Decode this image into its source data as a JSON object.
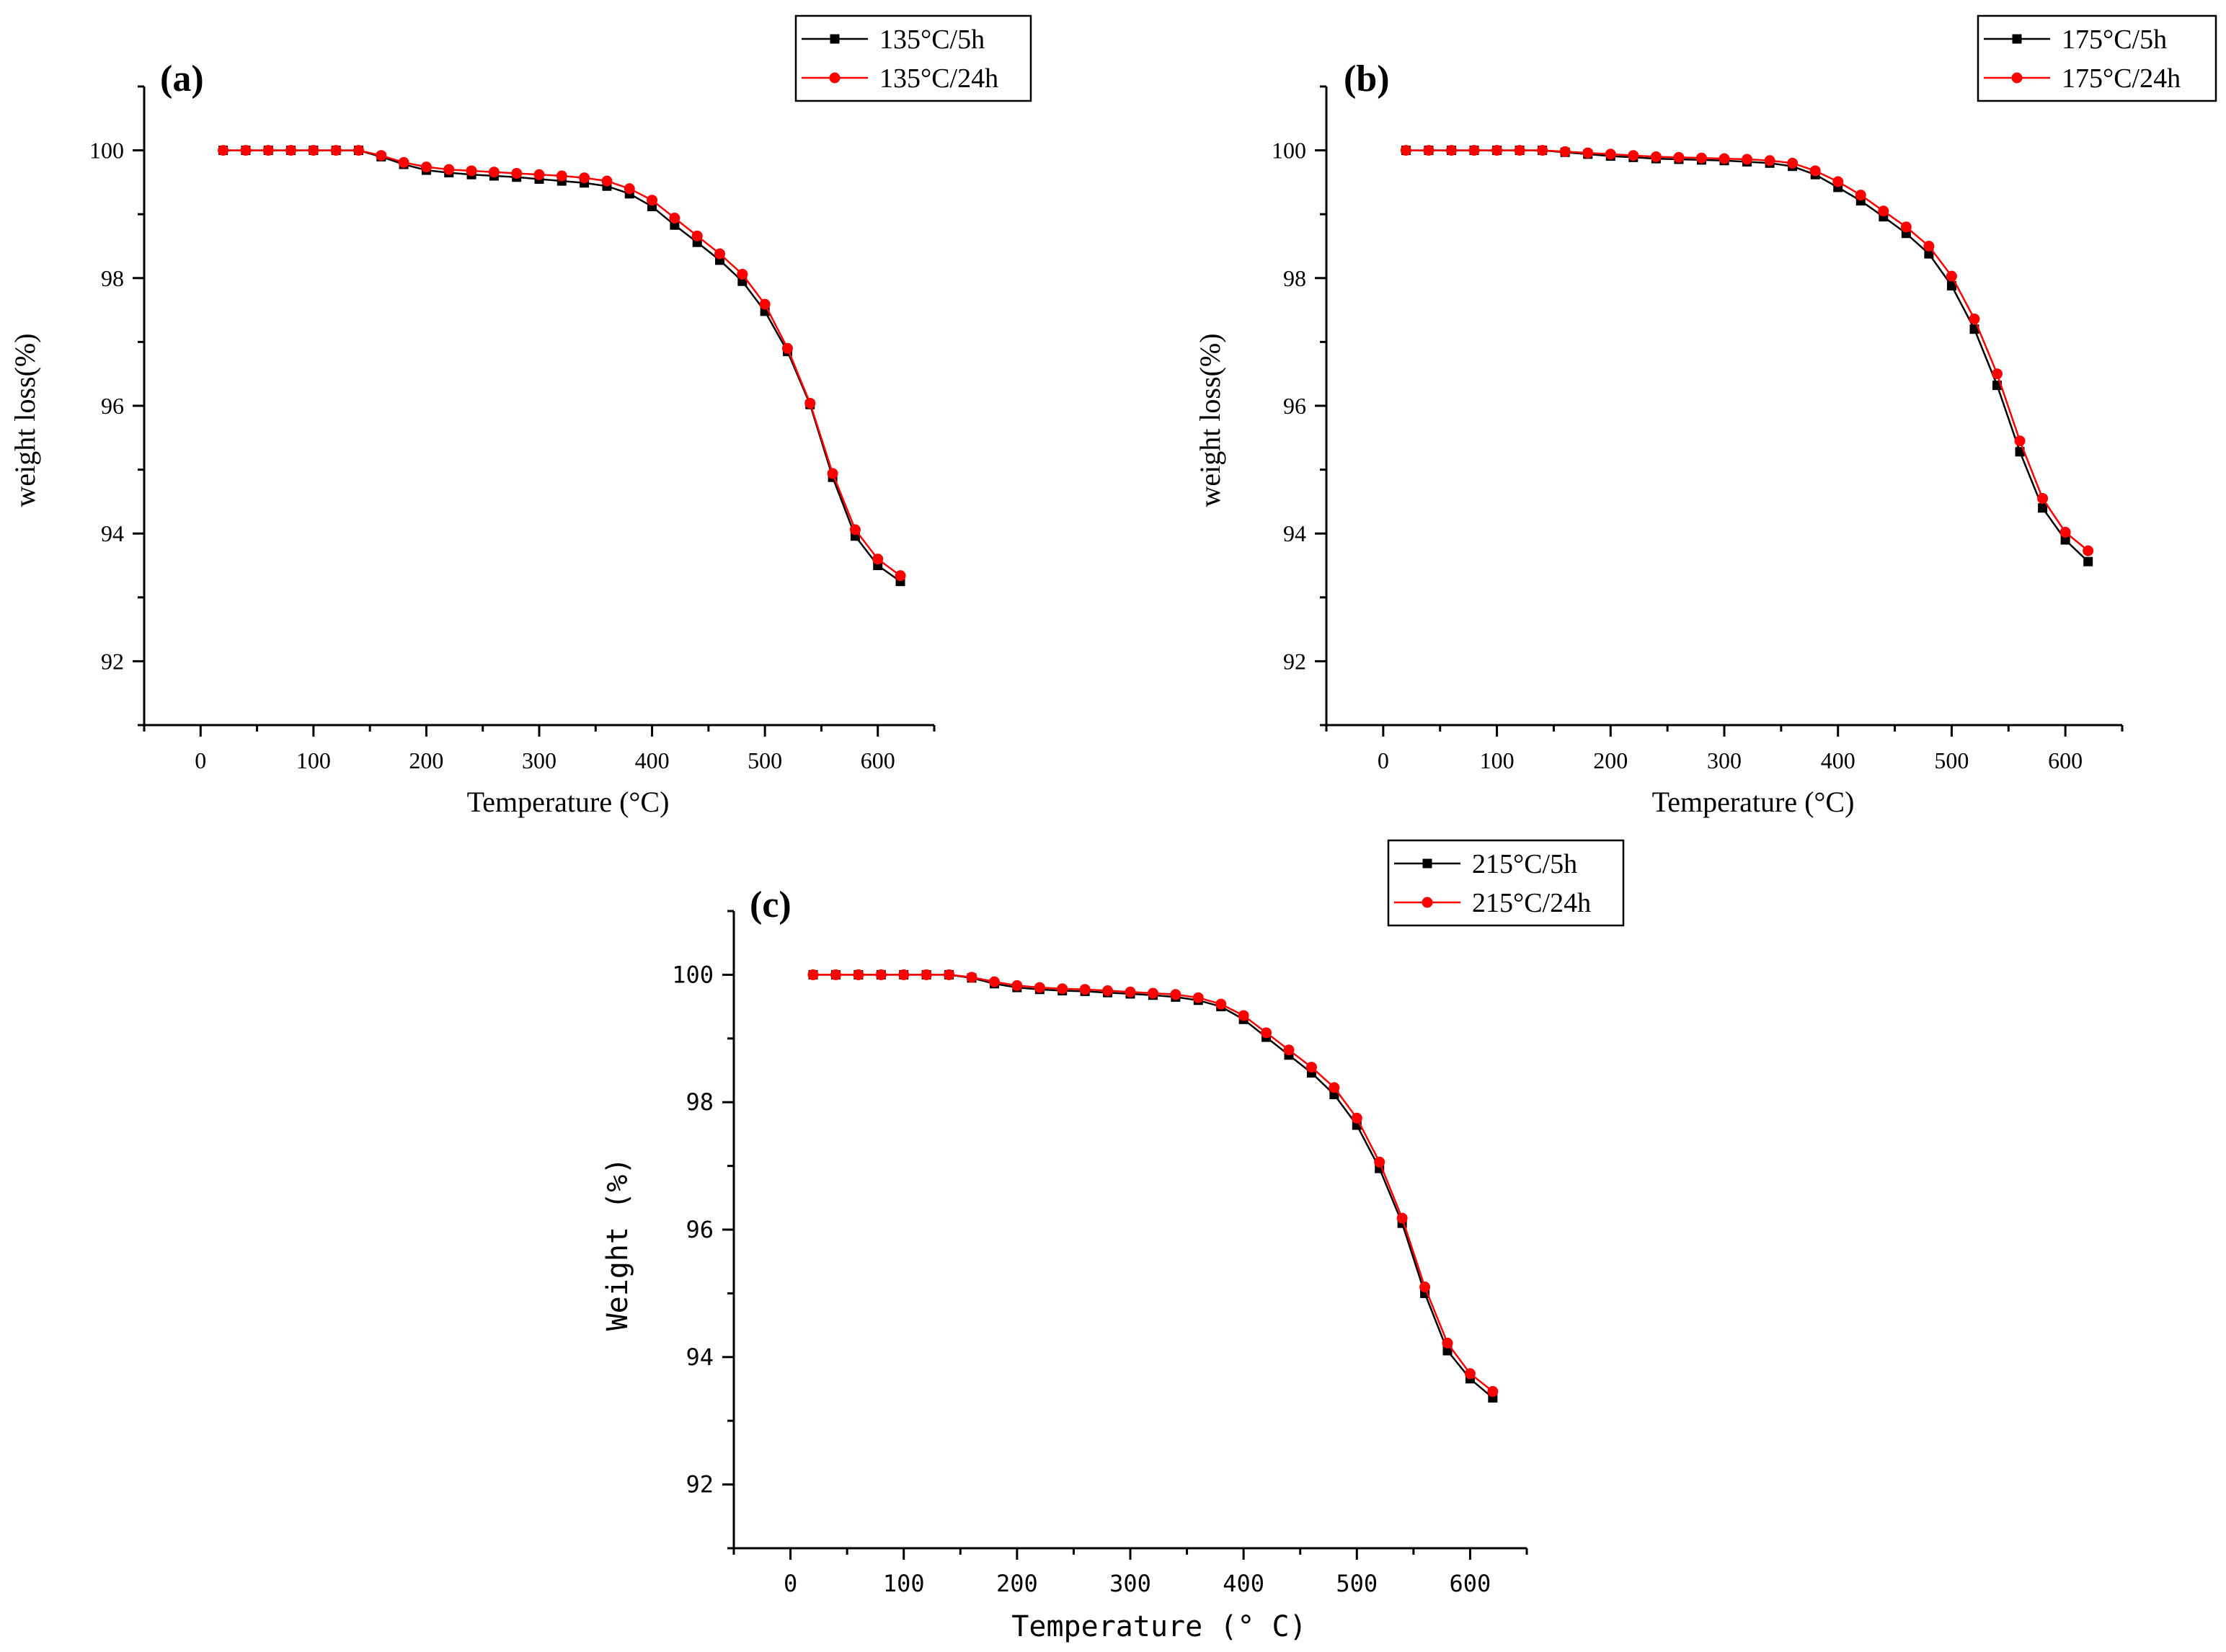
{
  "colors": {
    "series_5h": "#000000",
    "series_24h": "#ff0000",
    "axis": "#000000",
    "background": "#ffffff"
  },
  "chart_data": [
    {
      "type": "line",
      "panel_label": "(a)",
      "xlabel": "Temperature (°C)",
      "ylabel": "weight loss(%)",
      "xlim": [
        -50,
        650
      ],
      "ylim": [
        91,
        101
      ],
      "xticks": [
        0,
        100,
        200,
        300,
        400,
        500,
        600
      ],
      "yticks": [
        92,
        94,
        96,
        98,
        100
      ],
      "legend_position": "top-right",
      "grid": false,
      "x": [
        20,
        40,
        60,
        80,
        100,
        120,
        140,
        160,
        180,
        200,
        220,
        240,
        260,
        280,
        300,
        320,
        340,
        360,
        380,
        400,
        420,
        440,
        460,
        480,
        500,
        520,
        540,
        560,
        580,
        600,
        620
      ],
      "series": [
        {
          "name": "135°C/5h",
          "marker": "square",
          "values": [
            100,
            100,
            100,
            100,
            100,
            100,
            100,
            99.9,
            99.78,
            99.69,
            99.65,
            99.62,
            99.6,
            99.58,
            99.55,
            99.52,
            99.49,
            99.44,
            99.32,
            99.12,
            98.83,
            98.56,
            98.28,
            97.95,
            97.48,
            96.85,
            96.02,
            94.88,
            93.96,
            93.5,
            93.25
          ]
        },
        {
          "name": "135°C/24h",
          "marker": "circle",
          "values": [
            100,
            100,
            100,
            100,
            100,
            100,
            100,
            99.92,
            99.81,
            99.74,
            99.7,
            99.68,
            99.66,
            99.64,
            99.62,
            99.6,
            99.57,
            99.52,
            99.4,
            99.22,
            98.94,
            98.66,
            98.38,
            98.06,
            97.59,
            96.9,
            96.04,
            94.94,
            94.06,
            93.6,
            93.34
          ]
        }
      ]
    },
    {
      "type": "line",
      "panel_label": "(b)",
      "xlabel": "Temperature (°C)",
      "ylabel": "weight loss(%)",
      "xlim": [
        -50,
        650
      ],
      "ylim": [
        91,
        101
      ],
      "xticks": [
        0,
        100,
        200,
        300,
        400,
        500,
        600
      ],
      "yticks": [
        92,
        94,
        96,
        98,
        100
      ],
      "legend_position": "top-right",
      "grid": false,
      "x": [
        20,
        40,
        60,
        80,
        100,
        120,
        140,
        160,
        180,
        200,
        220,
        240,
        260,
        280,
        300,
        320,
        340,
        360,
        380,
        400,
        420,
        440,
        460,
        480,
        500,
        520,
        540,
        560,
        580,
        600,
        620
      ],
      "series": [
        {
          "name": "175°C/5h",
          "marker": "square",
          "values": [
            100,
            100,
            100,
            100,
            100,
            100,
            100,
            99.97,
            99.94,
            99.91,
            99.89,
            99.87,
            99.86,
            99.85,
            99.84,
            99.82,
            99.8,
            99.75,
            99.62,
            99.42,
            99.21,
            98.96,
            98.7,
            98.38,
            97.88,
            97.2,
            96.32,
            95.28,
            94.4,
            93.9,
            93.56
          ]
        },
        {
          "name": "175°C/24h",
          "marker": "circle",
          "values": [
            100,
            100,
            100,
            100,
            100,
            100,
            100,
            99.98,
            99.96,
            99.94,
            99.92,
            99.9,
            99.89,
            99.88,
            99.87,
            99.86,
            99.84,
            99.8,
            99.68,
            99.51,
            99.3,
            99.05,
            98.8,
            98.5,
            98.03,
            97.36,
            96.5,
            95.45,
            94.55,
            94.02,
            93.73
          ]
        }
      ]
    },
    {
      "type": "line",
      "panel_label": "(c)",
      "xlabel": "Temperature (° C)",
      "ylabel": "Weight (%)",
      "xlim": [
        -50,
        650
      ],
      "ylim": [
        91,
        101
      ],
      "xticks": [
        0,
        100,
        200,
        300,
        400,
        500,
        600
      ],
      "yticks": [
        92,
        94,
        96,
        98,
        100
      ],
      "legend_position": "top-right",
      "grid": false,
      "x": [
        20,
        40,
        60,
        80,
        100,
        120,
        140,
        160,
        180,
        200,
        220,
        240,
        260,
        280,
        300,
        320,
        340,
        360,
        380,
        400,
        420,
        440,
        460,
        480,
        500,
        520,
        540,
        560,
        580,
        600,
        620
      ],
      "series": [
        {
          "name": "215°C/5h",
          "marker": "square",
          "values": [
            100,
            100,
            100,
            100,
            100,
            100,
            100,
            99.95,
            99.86,
            99.8,
            99.77,
            99.75,
            99.74,
            99.72,
            99.7,
            99.68,
            99.65,
            99.6,
            99.5,
            99.3,
            99.02,
            98.74,
            98.46,
            98.12,
            97.64,
            96.96,
            96.1,
            95.0,
            94.1,
            93.66,
            93.36
          ]
        },
        {
          "name": "215°C/24h",
          "marker": "circle",
          "values": [
            100,
            100,
            100,
            100,
            100,
            100,
            100,
            99.96,
            99.89,
            99.83,
            99.8,
            99.78,
            99.77,
            99.75,
            99.73,
            99.71,
            99.69,
            99.64,
            99.54,
            99.36,
            99.09,
            98.82,
            98.55,
            98.23,
            97.75,
            97.06,
            96.18,
            95.1,
            94.22,
            93.74,
            93.46
          ]
        }
      ]
    }
  ]
}
